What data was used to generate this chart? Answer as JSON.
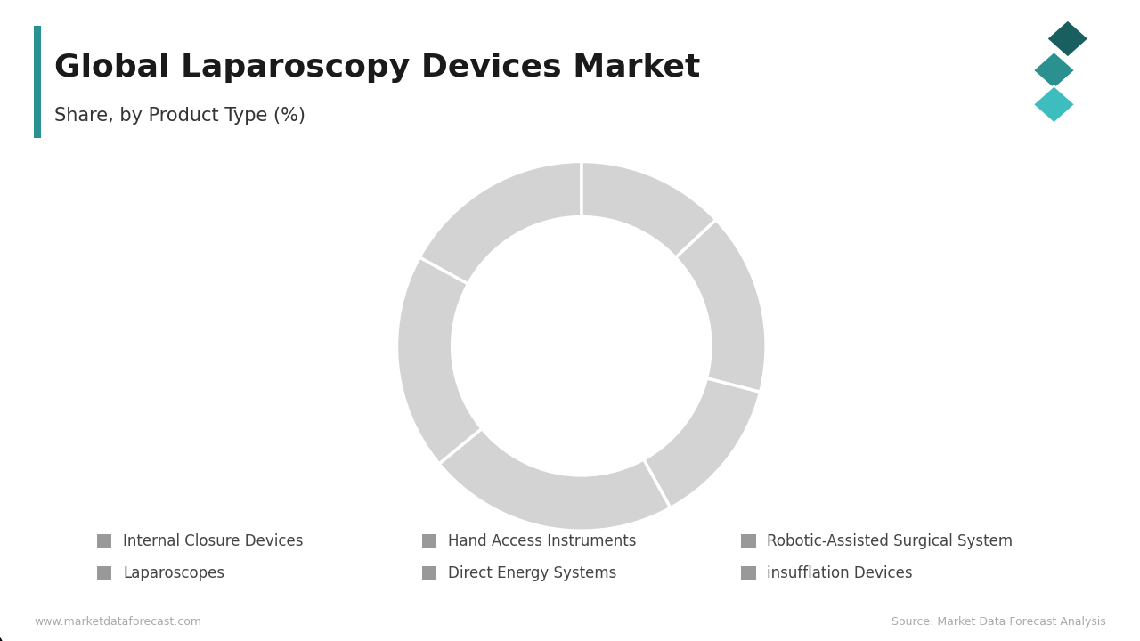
{
  "title": "Global Laparoscopy Devices Market",
  "subtitle": "Share, by Product Type (%)",
  "categories": [
    "Internal Closure Devices",
    "Laparoscopes",
    "Hand Access Instruments",
    "Direct Energy Systems",
    "Robotic-Assisted Surgical System",
    "insufflation Devices"
  ],
  "values": [
    13,
    16,
    13,
    22,
    19,
    17
  ],
  "donut_color": "#D3D3D3",
  "wedge_edge_color": "#FFFFFF",
  "background_color": "#FFFFFF",
  "title_fontsize": 26,
  "subtitle_fontsize": 15,
  "legend_fontsize": 12,
  "legend_color": "#999999",
  "footer_left": "www.marketdataforecast.com",
  "footer_right": "Source: Market Data Forecast Analysis",
  "footer_fontsize": 9,
  "left_bar_color": "#2a9090",
  "logo_colors": [
    "#1a5f5f",
    "#2a9090",
    "#3dbdbd"
  ]
}
